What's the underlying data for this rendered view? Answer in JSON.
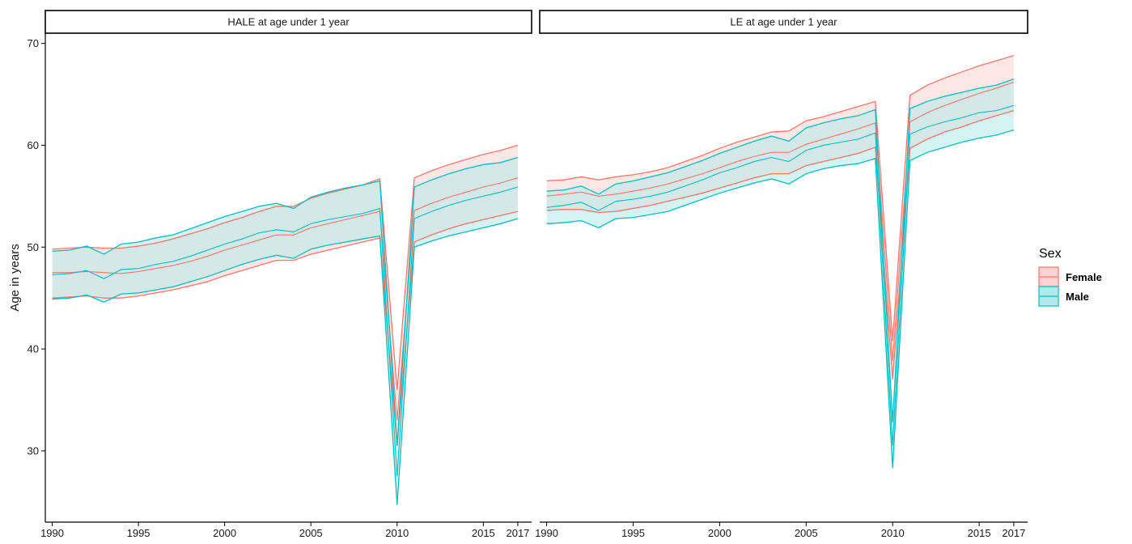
{
  "chart_data": {
    "type": "area",
    "title": "",
    "ylabel": "Age in years",
    "xlabel": "",
    "xlim": [
      1989.6,
      2017.8
    ],
    "ylim": [
      23,
      71
    ],
    "x_ticks": [
      1990,
      1995,
      2000,
      2005,
      2010,
      2015,
      2017
    ],
    "y_ticks": [
      30,
      40,
      50,
      60,
      70
    ],
    "grid": false,
    "legend": {
      "title": "Sex",
      "position": "right",
      "entries": [
        {
          "label": "Female",
          "line_color": "#F8766D",
          "fill_color": "#FCD3D0"
        },
        {
          "label": "Male",
          "line_color": "#00BFC4",
          "fill_color": "#B3E9EA"
        }
      ]
    },
    "x": [
      1990,
      1991,
      1992,
      1993,
      1994,
      1995,
      1996,
      1997,
      1998,
      1999,
      2000,
      2001,
      2002,
      2003,
      2004,
      2005,
      2006,
      2007,
      2008,
      2009,
      2010,
      2011,
      2012,
      2013,
      2014,
      2015,
      2016,
      2017
    ],
    "panels": [
      {
        "strip": "HALE  at age under 1 year",
        "series": [
          {
            "name": "Female",
            "lower": [
              45.0,
              45.1,
              45.2,
              45.0,
              45.0,
              45.2,
              45.5,
              45.8,
              46.2,
              46.6,
              47.2,
              47.7,
              48.2,
              48.7,
              48.7,
              49.3,
              49.7,
              50.1,
              50.5,
              50.9,
              30.5,
              50.5,
              51.2,
              51.8,
              52.3,
              52.7,
              53.1,
              53.5
            ],
            "mean": [
              47.5,
              47.5,
              47.6,
              47.5,
              47.4,
              47.6,
              47.9,
              48.2,
              48.6,
              49.1,
              49.7,
              50.2,
              50.7,
              51.2,
              51.2,
              51.9,
              52.3,
              52.7,
              53.1,
              53.5,
              33.0,
              53.6,
              54.3,
              54.9,
              55.4,
              55.9,
              56.3,
              56.8
            ],
            "upper": [
              49.8,
              49.9,
              50.0,
              49.9,
              49.9,
              50.1,
              50.4,
              50.8,
              51.3,
              51.8,
              52.4,
              52.9,
              53.5,
              54.0,
              54.0,
              54.8,
              55.3,
              55.7,
              56.1,
              56.7,
              36.0,
              56.8,
              57.5,
              58.1,
              58.6,
              59.1,
              59.5,
              60.0
            ]
          },
          {
            "name": "Male",
            "lower": [
              44.9,
              45.0,
              45.3,
              44.6,
              45.4,
              45.5,
              45.8,
              46.1,
              46.6,
              47.1,
              47.7,
              48.3,
              48.8,
              49.2,
              48.9,
              49.8,
              50.2,
              50.5,
              50.8,
              51.1,
              24.7,
              50.0,
              50.6,
              51.1,
              51.5,
              51.9,
              52.3,
              52.8
            ],
            "mean": [
              47.3,
              47.4,
              47.7,
              46.9,
              47.8,
              47.9,
              48.3,
              48.6,
              49.1,
              49.7,
              50.3,
              50.8,
              51.4,
              51.7,
              51.5,
              52.3,
              52.7,
              53.0,
              53.3,
              53.8,
              27.5,
              52.8,
              53.5,
              54.1,
              54.6,
              55.0,
              55.4,
              55.9
            ],
            "upper": [
              49.6,
              49.7,
              50.1,
              49.3,
              50.3,
              50.5,
              50.9,
              51.2,
              51.8,
              52.4,
              53.0,
              53.5,
              54.0,
              54.3,
              53.8,
              54.9,
              55.4,
              55.8,
              56.1,
              56.5,
              30.5,
              55.9,
              56.6,
              57.2,
              57.7,
              58.1,
              58.3,
              58.8
            ]
          }
        ]
      },
      {
        "strip": "LE at age under 1 year",
        "series": [
          {
            "name": "Female",
            "lower": [
              53.6,
              53.7,
              53.7,
              53.4,
              53.5,
              53.8,
              54.1,
              54.5,
              54.9,
              55.3,
              55.8,
              56.3,
              56.8,
              57.2,
              57.2,
              58.0,
              58.4,
              58.8,
              59.2,
              59.8,
              37.0,
              59.7,
              60.6,
              61.3,
              61.8,
              62.4,
              62.9,
              63.4
            ],
            "mean": [
              55.0,
              55.2,
              55.4,
              55.0,
              55.2,
              55.5,
              55.8,
              56.2,
              56.7,
              57.2,
              57.8,
              58.4,
              58.9,
              59.3,
              59.3,
              60.1,
              60.6,
              61.1,
              61.6,
              62.2,
              38.8,
              62.3,
              63.2,
              63.9,
              64.5,
              65.1,
              65.6,
              66.2
            ],
            "upper": [
              56.5,
              56.6,
              56.9,
              56.6,
              56.9,
              57.1,
              57.4,
              57.8,
              58.4,
              59.0,
              59.7,
              60.3,
              60.8,
              61.3,
              61.4,
              62.4,
              62.8,
              63.3,
              63.8,
              64.3,
              40.8,
              64.9,
              65.9,
              66.6,
              67.2,
              67.8,
              68.3,
              68.8
            ]
          },
          {
            "name": "Male",
            "lower": [
              52.3,
              52.4,
              52.6,
              51.9,
              52.8,
              52.9,
              53.2,
              53.5,
              54.1,
              54.7,
              55.3,
              55.8,
              56.3,
              56.7,
              56.2,
              57.2,
              57.7,
              58.0,
              58.2,
              58.7,
              28.3,
              58.5,
              59.3,
              59.8,
              60.3,
              60.7,
              61.0,
              61.5
            ],
            "mean": [
              53.9,
              54.1,
              54.4,
              53.6,
              54.5,
              54.7,
              55.0,
              55.4,
              56.0,
              56.6,
              57.3,
              57.8,
              58.4,
              58.8,
              58.4,
              59.5,
              60.0,
              60.3,
              60.6,
              61.2,
              30.5,
              61.1,
              61.8,
              62.3,
              62.7,
              63.2,
              63.4,
              63.9
            ],
            "upper": [
              55.5,
              55.6,
              56.0,
              55.2,
              56.2,
              56.5,
              56.9,
              57.3,
              57.9,
              58.5,
              59.2,
              59.8,
              60.4,
              60.9,
              60.4,
              61.7,
              62.2,
              62.6,
              62.9,
              63.5,
              32.8,
              63.6,
              64.3,
              64.8,
              65.2,
              65.6,
              65.9,
              66.5
            ]
          }
        ]
      }
    ]
  }
}
